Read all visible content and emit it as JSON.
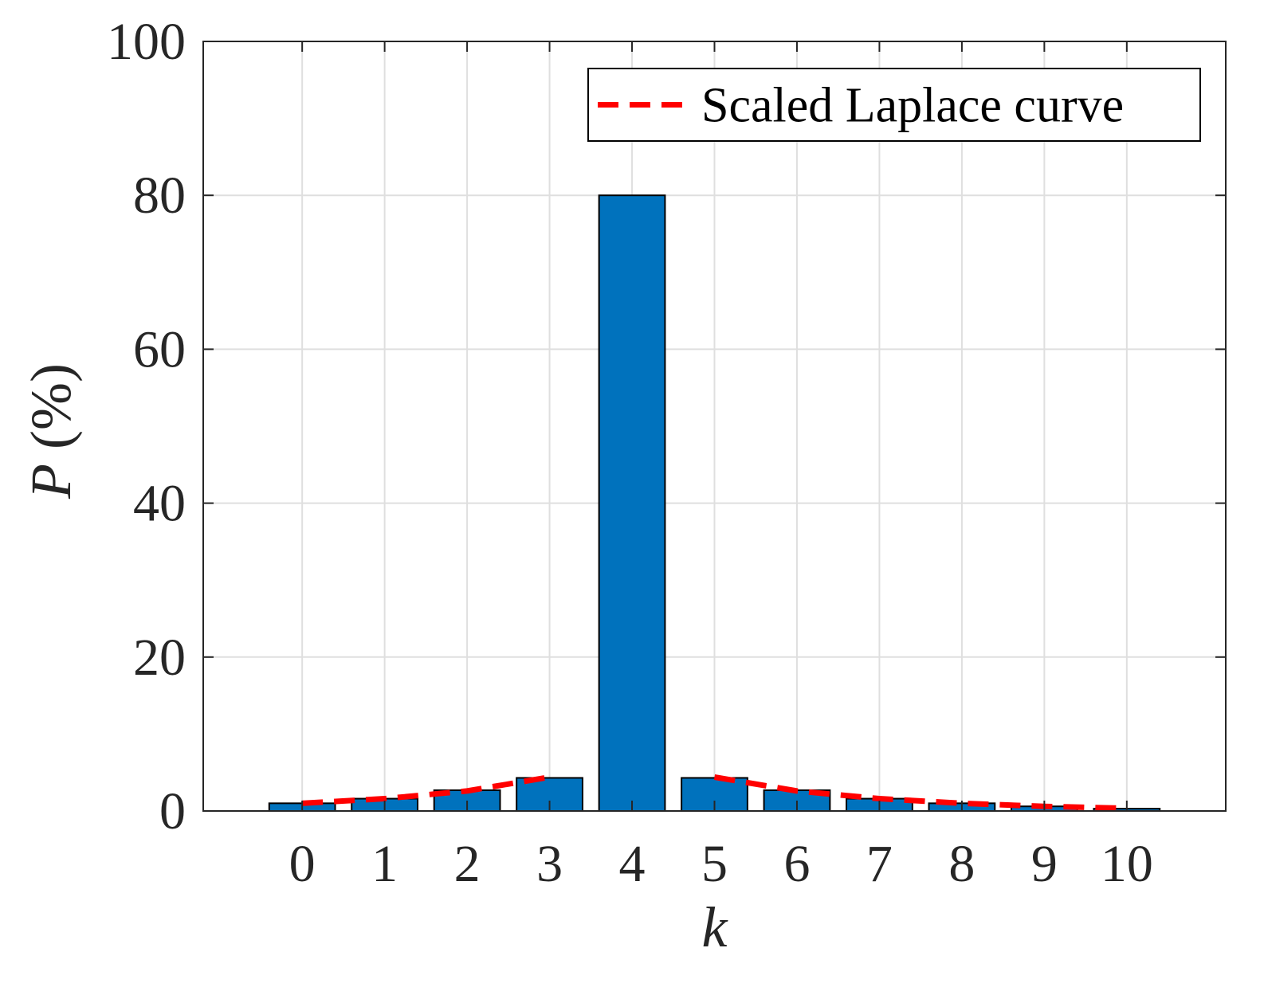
{
  "chart_data": {
    "type": "bar",
    "title": "",
    "xlabel": "k",
    "ylabel": "P (%)",
    "categories": [
      "0",
      "1",
      "2",
      "3",
      "4",
      "5",
      "6",
      "7",
      "8",
      "9",
      "10"
    ],
    "x": [
      0,
      1,
      2,
      3,
      4,
      5,
      6,
      7,
      8,
      9,
      10
    ],
    "series": [
      {
        "values": [
          1.0,
          1.6,
          2.7,
          4.3,
          80.0,
          4.3,
          2.7,
          1.6,
          1.0,
          0.6,
          0.3
        ]
      },
      {
        "name": "Scaled Laplace curve",
        "type": "line",
        "values": [
          1.0,
          1.6,
          2.6,
          4.4,
          null,
          4.4,
          2.6,
          1.6,
          1.0,
          0.6,
          0.35
        ]
      }
    ],
    "xlim": [
      -1.2,
      11.2
    ],
    "ylim": [
      0,
      100
    ],
    "yticks": [
      0,
      20,
      40,
      60,
      80,
      100
    ],
    "grid": true,
    "legend_position": "top-right",
    "colors": {
      "bar_fill": "#0072BD",
      "bar_edge": "#000000",
      "curve": "#FF0000",
      "grid": "#DFDFDF",
      "axis": "#262626"
    }
  }
}
